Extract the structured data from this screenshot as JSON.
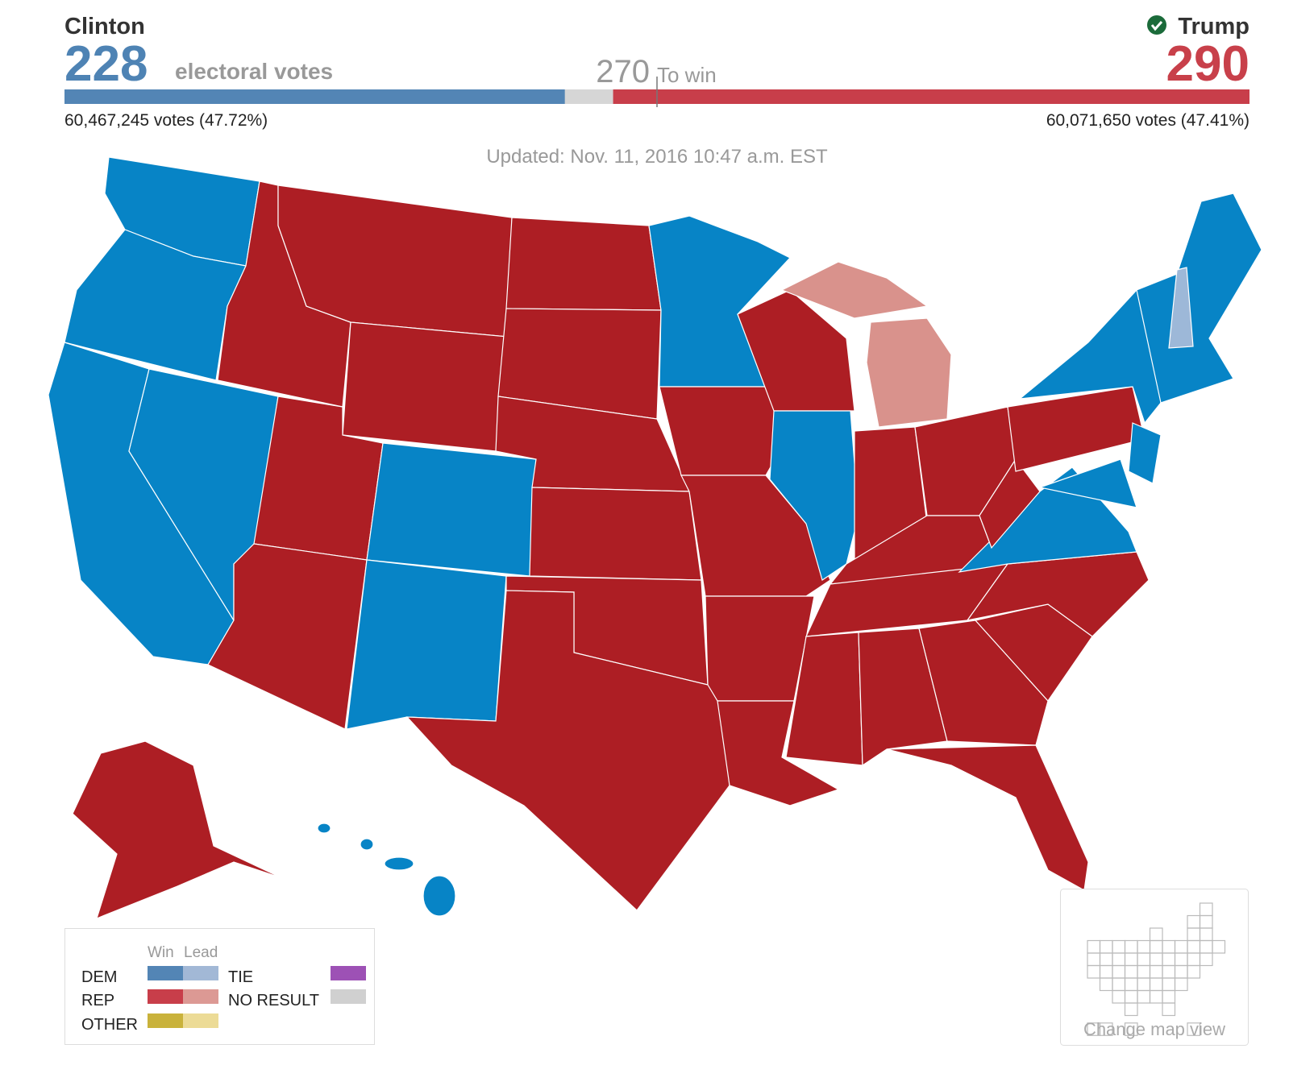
{
  "header": {
    "clinton": {
      "name": "Clinton",
      "electoral_votes": 228,
      "popular": "60,467,245 votes (47.72%)"
    },
    "electoral_label": "electoral votes",
    "to_win": {
      "value": 270,
      "label": "To win"
    },
    "trump": {
      "name": "Trump",
      "electoral_votes": 290,
      "popular": "60,071,650 votes (47.41%)"
    }
  },
  "updated": "Updated: Nov. 11, 2016 10:47 a.m. EST",
  "legend": {
    "columns": [
      "Win",
      "Lead"
    ],
    "parties": [
      "DEM",
      "REP",
      "OTHER"
    ],
    "others": [
      "TIE",
      "NO RESULT"
    ]
  },
  "map_view_button": "Change map view"
}
